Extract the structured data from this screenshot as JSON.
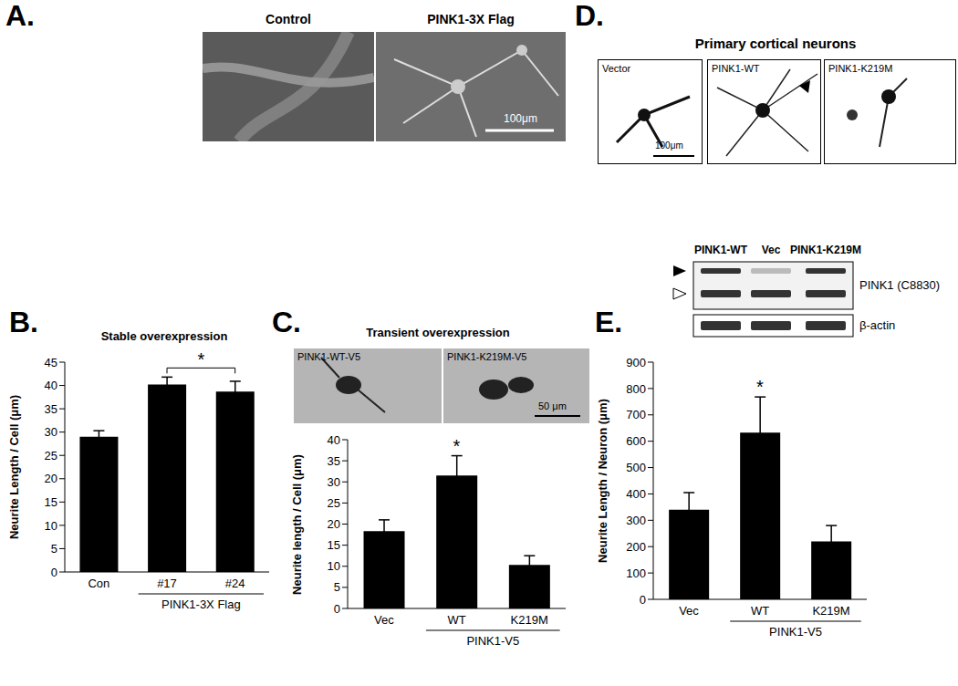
{
  "chart_data": [
    {
      "panel_label": "B.",
      "type": "bar",
      "title": "Stable overexpression",
      "y_label": "Neurite Length / Cell (μm)",
      "categories": [
        "Con",
        "#17",
        "#24"
      ],
      "values": [
        29.0,
        40.2,
        38.7
      ],
      "errors": [
        1.3,
        1.6,
        2.2
      ],
      "color": "#000000",
      "ylim": [
        0,
        45
      ],
      "yticks": [
        0,
        5,
        10,
        15,
        20,
        25,
        30,
        35,
        40,
        45
      ],
      "grid": false,
      "x_group": {
        "label": "PINK1-3X Flag",
        "categories": [
          "#17",
          "#24"
        ]
      },
      "annotations": [
        {
          "text": "*",
          "categories": [
            "#17",
            "#24"
          ]
        }
      ]
    },
    {
      "panel_label": "C.",
      "type": "bar",
      "title": "Transient overexpression",
      "y_label": "Neurite length / Cell (μm)",
      "categories": [
        "Vec",
        "WT",
        "K219M"
      ],
      "values": [
        18.3,
        31.5,
        10.3
      ],
      "errors": [
        2.7,
        4.7,
        2.2
      ],
      "color": "#000000",
      "ylim": [
        0,
        40
      ],
      "yticks": [
        0,
        5,
        10,
        15,
        20,
        25,
        30,
        35,
        40
      ],
      "grid": false,
      "x_group": {
        "label": "PINK1-V5",
        "categories": [
          "WT",
          "K219M"
        ]
      },
      "annotations": [
        {
          "text": "*",
          "categories": [
            "WT"
          ]
        }
      ]
    },
    {
      "panel_label": "E.",
      "type": "bar",
      "title": null,
      "y_label": "Neurite Length / Neuron (μm)",
      "categories": [
        "Vec",
        "WT",
        "K219M"
      ],
      "values": [
        340,
        633,
        220
      ],
      "errors": [
        65,
        135,
        60
      ],
      "color": "#000000",
      "ylim": [
        0,
        900
      ],
      "yticks": [
        0,
        100,
        200,
        300,
        400,
        500,
        600,
        700,
        800,
        900
      ],
      "grid": false,
      "x_group": {
        "label": "PINK1-V5",
        "categories": [
          "WT",
          "K219M"
        ]
      },
      "annotations": [
        {
          "text": "*",
          "categories": [
            "WT"
          ]
        }
      ]
    }
  ],
  "images": {
    "A": {
      "panel_label": "A.",
      "images": [
        "Control",
        "PINK1-3X Flag"
      ],
      "scale_bar": "100μm"
    },
    "C": {
      "images": [
        "PINK1-WT-V5",
        "PINK1-K219M-V5"
      ],
      "scale_bar": "50 μm"
    },
    "D": {
      "panel_label": "D.",
      "title": "Primary cortical neurons",
      "images": [
        "Vector",
        "PINK1-WT",
        "PINK1-K219M"
      ],
      "scale_bar": "100μm"
    },
    "E_blot": {
      "lanes": [
        "PINK1-WT",
        "Vec",
        "PINK1-K219M"
      ],
      "rows": [
        "PINK1 (C8830)",
        "β-actin"
      ]
    }
  }
}
